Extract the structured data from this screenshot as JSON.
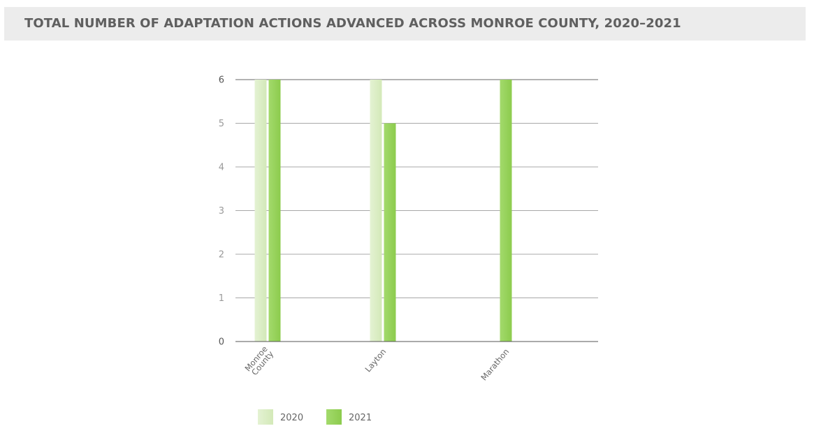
{
  "header": {
    "title": "TOTAL NUMBER OF ADAPTATION ACTIONS ADVANCED ACROSS MONROE COUNTY, 2020–2021"
  },
  "colors": {
    "header_bg": "#ececec",
    "series_2020": "#dbedc3",
    "series_2021": "#96d35a",
    "axis": "#555555",
    "grid": "#9a9a9a"
  },
  "chart_data": {
    "type": "bar",
    "categories": [
      [
        "Monroe",
        "County"
      ],
      [
        "Layton"
      ],
      [
        "Marathon"
      ]
    ],
    "series": [
      {
        "name": "2020",
        "color": "#dbedc3",
        "values": [
          6,
          6,
          0
        ]
      },
      {
        "name": "2021",
        "color": "#96d35a",
        "values": [
          6,
          5,
          6
        ]
      }
    ],
    "yticks": [
      0,
      1,
      2,
      3,
      4,
      5,
      6
    ],
    "ylim": [
      0,
      6
    ],
    "grid": true,
    "legend": "bottom-center"
  }
}
